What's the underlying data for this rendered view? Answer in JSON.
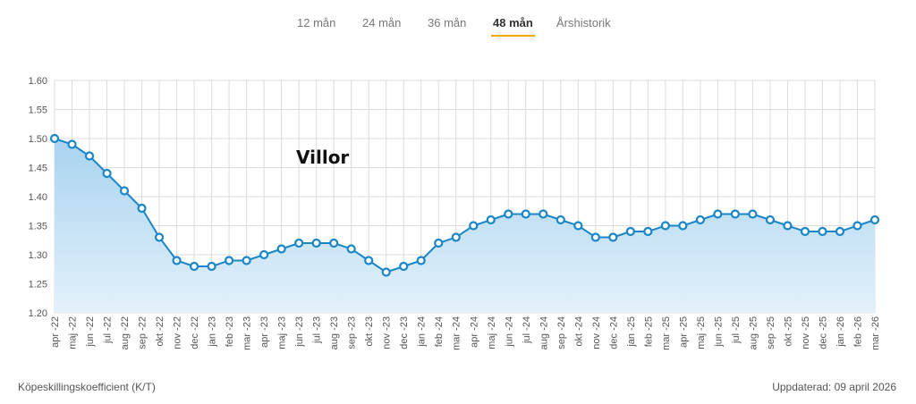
{
  "tabs": [
    {
      "label": "12 mån",
      "active": false
    },
    {
      "label": "24 mån",
      "active": false
    },
    {
      "label": "36 mån",
      "active": false
    },
    {
      "label": "48 mån",
      "active": true
    },
    {
      "label": "Årshistorik",
      "active": false
    }
  ],
  "footer": {
    "ylabel": "Köpeskillingskoefficient (K/T)",
    "updated": "Uppdaterad: 09 april 2026"
  },
  "colors": {
    "line": "#1a85c7",
    "fill_top": "#a9d3ef",
    "fill_bottom": "#e3f1fb",
    "grid": "#dcdcdc",
    "tab_underline": "#f0a500"
  },
  "chart_data": {
    "type": "area",
    "title": "Villor",
    "ylim": [
      1.2,
      1.6
    ],
    "yticks": [
      "1.20",
      "1.25",
      "1.30",
      "1.35",
      "1.40",
      "1.45",
      "1.50",
      "1.55",
      "1.60"
    ],
    "grid": true,
    "categories": [
      "apr -22",
      "maj -22",
      "jun -22",
      "jul -22",
      "aug -22",
      "sep -22",
      "okt -22",
      "nov -22",
      "dec -22",
      "jan -23",
      "feb -23",
      "mar -23",
      "apr -23",
      "maj -23",
      "jun -23",
      "jul -23",
      "aug -23",
      "sep -23",
      "okt -23",
      "nov -23",
      "dec -23",
      "jan -24",
      "feb -24",
      "mar -24",
      "apr -24",
      "maj -24",
      "jun -24",
      "jul -24",
      "aug -24",
      "sep -24",
      "okt -24",
      "nov -24",
      "dec -24",
      "jan -25",
      "feb -25",
      "mar -25",
      "apr -25",
      "maj -25",
      "jun -25",
      "jul -25",
      "aug -25",
      "sep -25",
      "okt -25",
      "nov -25",
      "dec -25",
      "jan -26",
      "feb -26",
      "mar -26"
    ],
    "xtick_labels": [
      "apr -22",
      "maj -22",
      "jun -22",
      "jul -22",
      "aug -22",
      "sep -22",
      "okt -22",
      "nov -22",
      "dec -22",
      "jan -23",
      "feb -23",
      "mar -23",
      "apr -23",
      "maj -23",
      "jun -23",
      "jul -23",
      "aug -23",
      "sep -23",
      "okt -23",
      "nov -23",
      "dec -23",
      "jan -24",
      "feb -24",
      "mar -24",
      "apr -24",
      "maj -24",
      "jun -24",
      "jul -24",
      "aug -24",
      "sep -24",
      "okt -24",
      "nov -24",
      "dec -24",
      "jan -25",
      "feb -25",
      "mar -25",
      "apr -25",
      "maj -25",
      "jun -25",
      "jul -25",
      "aug -25",
      "sep -25",
      "okt -25",
      "nov -25",
      "dec -25",
      "jan -26",
      "feb -26",
      "mar -26"
    ],
    "values": [
      1.5,
      1.49,
      1.47,
      1.44,
      1.41,
      1.38,
      1.33,
      1.29,
      1.28,
      1.28,
      1.29,
      1.29,
      1.3,
      1.31,
      1.32,
      1.32,
      1.32,
      1.31,
      1.29,
      1.27,
      1.28,
      1.29,
      1.32,
      1.33,
      1.35,
      1.36,
      1.37,
      1.37,
      1.37,
      1.36,
      1.35,
      1.33,
      1.33,
      1.34,
      1.34,
      1.35,
      1.35,
      1.36,
      1.37,
      1.37,
      1.37,
      1.36,
      1.35,
      1.34,
      1.34,
      1.34,
      1.35,
      1.36
    ]
  }
}
